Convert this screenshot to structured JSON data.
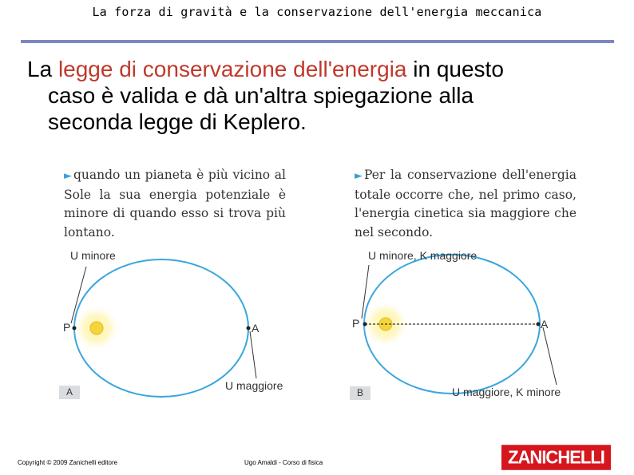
{
  "slide": {
    "title": "La forza di gravità e la conservazione dell'energia meccanica",
    "lead": {
      "pre": "La ",
      "highlight": "legge di conservazione dell'energia",
      "post": " in questo",
      "line2": "caso è valida e dà un'altra spiegazione alla",
      "line3": "seconda legge di Keplero."
    }
  },
  "figure_a": {
    "caption": "quando un pianeta è più vicino al Sole la sua energia potenziale è minore di quando esso si trova più lontano.",
    "label_top": "U minore",
    "label_bottom": "U maggiore",
    "point_p": "P",
    "point_a": "A",
    "tag": "A"
  },
  "figure_b": {
    "caption": "Per la conservazione dell'energia totale occorre che, nel primo caso, l'energia cinetica sia maggiore che nel secondo.",
    "label_top": "U minore, K maggiore",
    "label_bottom": "U maggiore, K minore",
    "point_p": "P",
    "point_a": "A",
    "tag": "B"
  },
  "footer": {
    "copyright": "Copyright © 2009 Zanichelli editore",
    "author": "Ugo Amaldi - Corso di fisica",
    "brand": "ZANICHELLI"
  },
  "colors": {
    "orbit": "#39a6dd",
    "highlight": "#c0392b",
    "rule": "#7d86c3",
    "brand": "#d6161d",
    "sun": "#f5d63a"
  }
}
